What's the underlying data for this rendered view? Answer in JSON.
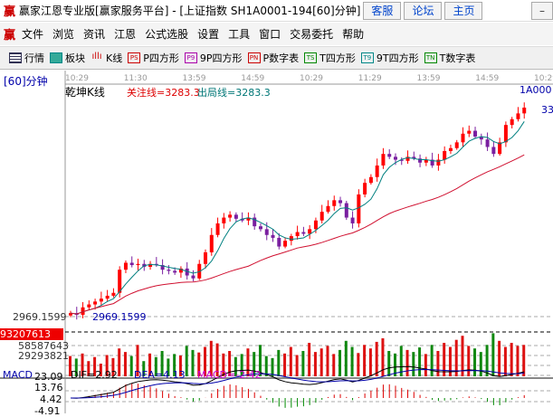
{
  "title": "赢家江恩专业版[赢家服务平台] - [上证指数  SH1A0001-194[60]分钟]",
  "title_buttons": [
    "客服",
    "论坛",
    "主页"
  ],
  "menu": [
    "文件",
    "浏览",
    "资讯",
    "江恩",
    "公式选股",
    "设置",
    "工具",
    "窗口",
    "交易委托",
    "帮助"
  ],
  "toolbar": [
    {
      "label": "行情",
      "icon": "grid-icon"
    },
    {
      "label": "板块",
      "icon": "blocks-icon"
    },
    {
      "label": "K线",
      "icon": "candles-icon"
    },
    {
      "label": "P四方形",
      "icon": "PS",
      "color": "#c00"
    },
    {
      "label": "9P四方形",
      "icon": "P9",
      "color": "#a0a"
    },
    {
      "label": "P数字表",
      "icon": "PN",
      "color": "#c00"
    },
    {
      "label": "T四方形",
      "icon": "TS",
      "color": "#080"
    },
    {
      "label": "9T四方形",
      "icon": "T9",
      "color": "#088"
    },
    {
      "label": "T数字表",
      "icon": "TN",
      "color": "#080"
    }
  ],
  "period": "[60]分钟",
  "time_labels": [
    "10:29",
    "11:30",
    "13:59",
    "14:59",
    "10:29",
    "11:29",
    "13:59",
    "14:59",
    "10:29"
  ],
  "indicator_name": "乾坤K线",
  "focus_line": "关注线=3283.3",
  "exit_line": "出局线=3283.3",
  "symbol": "1A000",
  "right_price": "33",
  "low_price": "2969.1599",
  "low_label": "2969.1599",
  "volume": {
    "max": "93207613",
    "mid": "58587643",
    "low": "29293821"
  },
  "macd": {
    "name": "MACD",
    "dif": "DIF=2.92",
    "dea": "DEA=4.13",
    "macd": "MACD=-2.42",
    "ticks": [
      "23.09",
      "13.76",
      "4.42",
      "-4.91"
    ]
  },
  "colors": {
    "up": "#ff0000",
    "down": "#7a1fa0",
    "ma_short": "#008080",
    "ma_long": "#d01030",
    "vol_up": "#dd1111",
    "vol_down": "#118811"
  },
  "closes": [
    2975,
    2972,
    2985,
    2990,
    2995,
    3000,
    3005,
    3010,
    3050,
    3062,
    3058,
    3060,
    3055,
    3060,
    3058,
    3050,
    3048,
    3045,
    3052,
    3040,
    3035,
    3060,
    3080,
    3110,
    3130,
    3140,
    3145,
    3138,
    3135,
    3140,
    3125,
    3120,
    3110,
    3105,
    3090,
    3100,
    3108,
    3115,
    3112,
    3120,
    3135,
    3150,
    3160,
    3170,
    3165,
    3140,
    3130,
    3180,
    3200,
    3210,
    3230,
    3250,
    3245,
    3240,
    3238,
    3245,
    3242,
    3235,
    3240,
    3230,
    3240,
    3255,
    3260,
    3270,
    3285,
    3290,
    3280,
    3275,
    3262,
    3250,
    3270,
    3300,
    3310,
    3320,
    3330
  ],
  "volumes": [
    40,
    35,
    45,
    30,
    38,
    25,
    42,
    36,
    55,
    48,
    40,
    62,
    30,
    45,
    38,
    50,
    35,
    44,
    41,
    60,
    52,
    47,
    58,
    70,
    65,
    45,
    50,
    38,
    44,
    55,
    48,
    62,
    40,
    36,
    52,
    45,
    58,
    42,
    50,
    66,
    48,
    55,
    60,
    44,
    52,
    70,
    58,
    46,
    62,
    55,
    68,
    75,
    50,
    45,
    60,
    52,
    48,
    57,
    44,
    62,
    50,
    66,
    58,
    72,
    80,
    60,
    55,
    48,
    62,
    85,
    70,
    58,
    66,
    60,
    62
  ]
}
